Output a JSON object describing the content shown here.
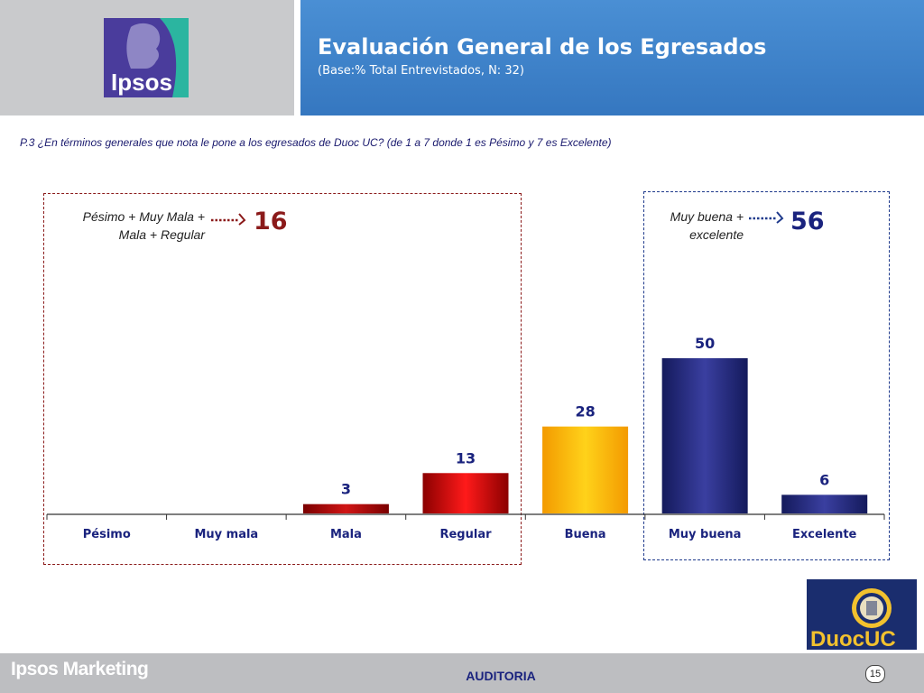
{
  "header": {
    "title": "Evaluación General de los Egresados",
    "subtitle": "(Base:% Total Entrevistados, N: 32)",
    "logo_text": "Ipsos"
  },
  "question": "P.3 ¿En términos generales que nota le pone a los egresados de Duoc UC? (de 1 a 7 donde 1 es Pésimo y 7 es Excelente)",
  "groups": {
    "negative": {
      "label_line1": "Pésimo + Muy Mala +",
      "label_line2": "Mala + Regular",
      "value": "16"
    },
    "positive": {
      "label_line1": "Muy buena +",
      "label_line2": "excelente",
      "value": "56"
    }
  },
  "chart_data": {
    "type": "bar",
    "categories": [
      "Pésimo",
      "Muy mala",
      "Mala",
      "Regular",
      "Buena",
      "Muy buena",
      "Excelente"
    ],
    "values": [
      null,
      null,
      3,
      13,
      28,
      50,
      6
    ],
    "colors": [
      "#8b0000",
      "#8b0000",
      "#b00d0d",
      "#d9141b",
      "#f8b20a",
      "#262b7a",
      "#262b7a"
    ],
    "title": "",
    "xlabel": "",
    "ylabel": "",
    "ylim": [
      0,
      55
    ]
  },
  "footer": {
    "brand": "Ipsos Marketing",
    "center": "AUDITORIA",
    "page": "15",
    "partner_logo": "DuocUC"
  },
  "colors": {
    "header_blue": "#3d85c6",
    "header_grey": "#c9cacc",
    "negative_accent": "#8b1a1a",
    "positive_accent": "#1f3a8c",
    "value_label": "#1a237e"
  }
}
